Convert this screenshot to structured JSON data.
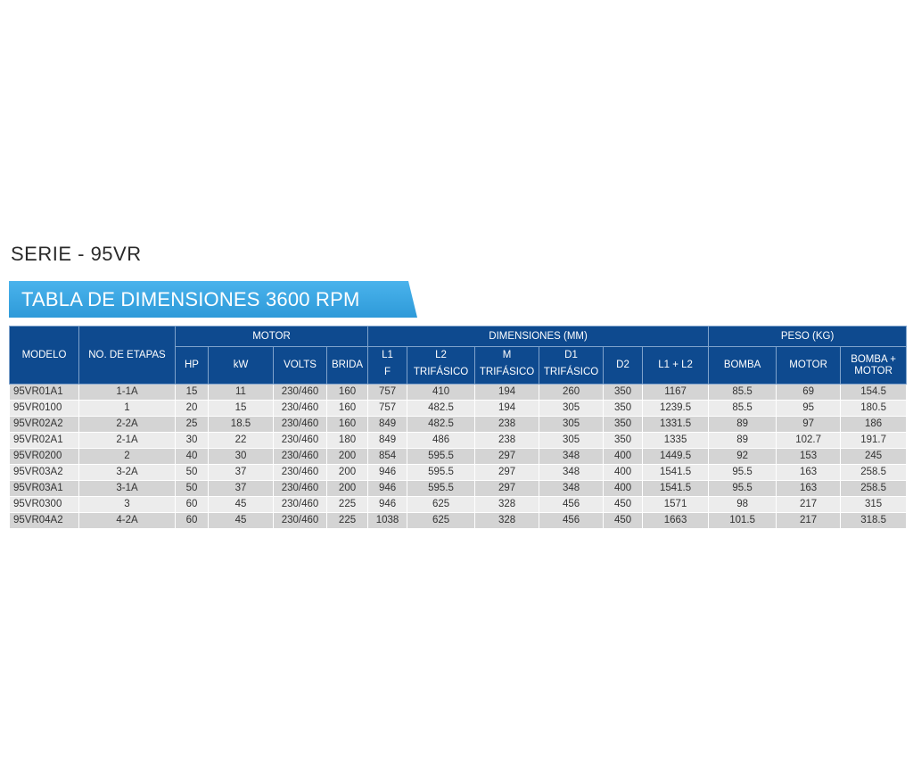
{
  "series_title": "SERIE - 95VR",
  "banner_title": "TABLA DE DIMENSIONES 3600 RPM",
  "colors": {
    "header_bg": "#0e4a8f",
    "banner": "#2e9ad9",
    "row_dark": "#d4d4d4",
    "row_light": "#ececec"
  },
  "headers": {
    "modelo": "MODELO",
    "etapas": "NO. DE ETAPAS",
    "motor": "MOTOR",
    "dimensiones": "DIMENSIONES (MM)",
    "peso": "PESO (KG)",
    "hp": "HP",
    "kw": "kW",
    "volts": "VOLTS",
    "brida": "BRIDA",
    "l1_top": "L1",
    "l1_bot": "F",
    "l2_top": "L2",
    "l2_bot": "TRIFÁSICO",
    "m_top": "M",
    "m_bot": "TRIFÁSICO",
    "d1_top": "D1",
    "d1_bot": "TRIFÁSICO",
    "d2": "D2",
    "l1l2": "L1 + L2",
    "bomba": "BOMBA",
    "motor_peso": "MOTOR",
    "bomba_motor_top": "BOMBA +",
    "bomba_motor_bot": "MOTOR"
  },
  "rows": [
    [
      "95VR01A1",
      "1-1A",
      "15",
      "11",
      "230/460",
      "160",
      "757",
      "410",
      "194",
      "260",
      "350",
      "1167",
      "85.5",
      "69",
      "154.5"
    ],
    [
      "95VR0100",
      "1",
      "20",
      "15",
      "230/460",
      "160",
      "757",
      "482.5",
      "194",
      "305",
      "350",
      "1239.5",
      "85.5",
      "95",
      "180.5"
    ],
    [
      "95VR02A2",
      "2-2A",
      "25",
      "18.5",
      "230/460",
      "160",
      "849",
      "482.5",
      "238",
      "305",
      "350",
      "1331.5",
      "89",
      "97",
      "186"
    ],
    [
      "95VR02A1",
      "2-1A",
      "30",
      "22",
      "230/460",
      "180",
      "849",
      "486",
      "238",
      "305",
      "350",
      "1335",
      "89",
      "102.7",
      "191.7"
    ],
    [
      "95VR0200",
      "2",
      "40",
      "30",
      "230/460",
      "200",
      "854",
      "595.5",
      "297",
      "348",
      "400",
      "1449.5",
      "92",
      "153",
      "245"
    ],
    [
      "95VR03A2",
      "3-2A",
      "50",
      "37",
      "230/460",
      "200",
      "946",
      "595.5",
      "297",
      "348",
      "400",
      "1541.5",
      "95.5",
      "163",
      "258.5"
    ],
    [
      "95VR03A1",
      "3-1A",
      "50",
      "37",
      "230/460",
      "200",
      "946",
      "595.5",
      "297",
      "348",
      "400",
      "1541.5",
      "95.5",
      "163",
      "258.5"
    ],
    [
      "95VR0300",
      "3",
      "60",
      "45",
      "230/460",
      "225",
      "946",
      "625",
      "328",
      "456",
      "450",
      "1571",
      "98",
      "217",
      "315"
    ],
    [
      "95VR04A2",
      "4-2A",
      "60",
      "45",
      "230/460",
      "225",
      "1038",
      "625",
      "328",
      "456",
      "450",
      "1663",
      "101.5",
      "217",
      "318.5"
    ]
  ]
}
